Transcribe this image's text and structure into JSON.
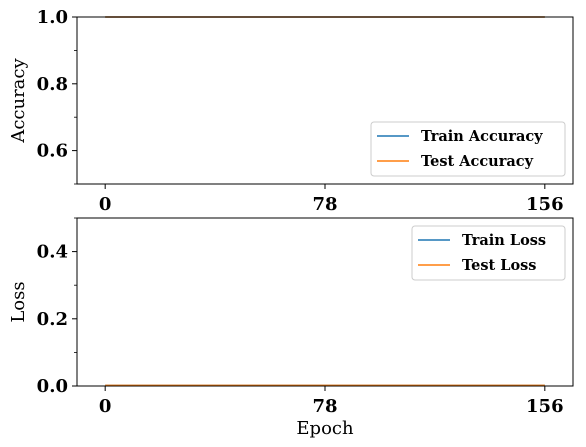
{
  "chart_data": [
    {
      "type": "line",
      "ylabel": "Accuracy",
      "xlabel": "",
      "xlim": [
        -10,
        166
      ],
      "ylim": [
        0.5,
        1.0
      ],
      "xticks": [
        0,
        78,
        156
      ],
      "xtick_labels": [
        "0",
        "78",
        "156"
      ],
      "yticks": [
        0.6,
        0.8,
        1.0
      ],
      "ytick_labels": [
        "0.6",
        "0.8",
        "1.0"
      ],
      "yminor_ticks": [
        0.5,
        0.7,
        0.9
      ],
      "legend_position": "bottom-right",
      "grid": false,
      "series": [
        {
          "name": "Train Accuracy",
          "color": "#1f77b4",
          "x": [
            0,
            156
          ],
          "y": [
            1.0,
            1.0
          ]
        },
        {
          "name": "Test Accuracy",
          "color": "#ff7f0e",
          "x": [
            0,
            156
          ],
          "y": [
            1.0,
            1.0
          ]
        }
      ]
    },
    {
      "type": "line",
      "ylabel": "Loss",
      "xlabel": "Epoch",
      "xlim": [
        -10,
        166
      ],
      "ylim": [
        0.0,
        0.5
      ],
      "xticks": [
        0,
        78,
        156
      ],
      "xtick_labels": [
        "0",
        "78",
        "156"
      ],
      "yticks": [
        0.0,
        0.2,
        0.4
      ],
      "ytick_labels": [
        "0.0",
        "0.2",
        "0.4"
      ],
      "yminor_ticks": [
        0.1,
        0.3,
        0.5
      ],
      "legend_position": "top-right",
      "grid": false,
      "series": [
        {
          "name": "Train Loss",
          "color": "#1f77b4",
          "x": [
            0,
            156
          ],
          "y": [
            0.002,
            0.002
          ]
        },
        {
          "name": "Test Loss",
          "color": "#ff7f0e",
          "x": [
            0,
            156
          ],
          "y": [
            0.002,
            0.002
          ]
        }
      ]
    }
  ]
}
